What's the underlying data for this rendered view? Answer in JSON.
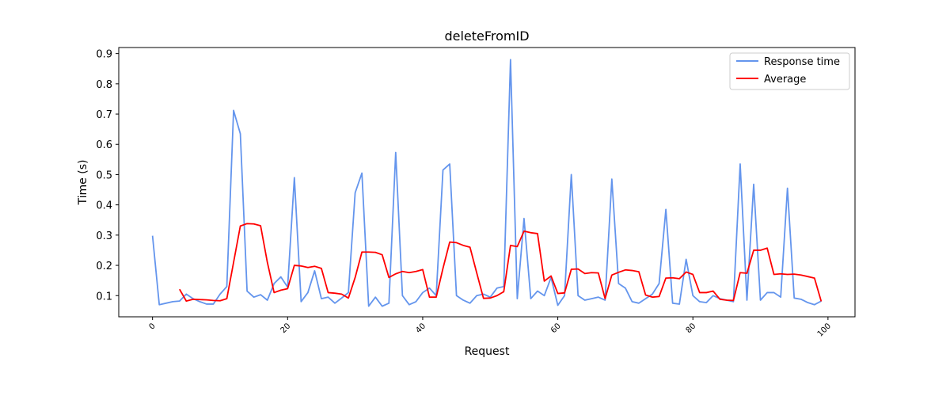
{
  "chart_data": {
    "type": "line",
    "title": "deleteFromID",
    "xlabel": "Request",
    "ylabel": "Time (s)",
    "xlim": [
      -5,
      104
    ],
    "ylim": [
      0.03,
      0.92
    ],
    "xticks": [
      0,
      20,
      40,
      60,
      80,
      100
    ],
    "yticks": [
      0.1,
      0.2,
      0.3,
      0.4,
      0.5,
      0.6,
      0.7,
      0.8,
      0.9
    ],
    "xtick_labels": [
      "0",
      "20",
      "40",
      "60",
      "80",
      "100"
    ],
    "ytick_labels": [
      "0.1",
      "0.2",
      "0.3",
      "0.4",
      "0.5",
      "0.6",
      "0.7",
      "0.8",
      "0.9"
    ],
    "grid": false,
    "legend_position": "top-right",
    "series": [
      {
        "name": "Response time",
        "color": "#6495ED",
        "x": [
          0,
          1,
          2,
          3,
          4,
          5,
          6,
          7,
          8,
          9,
          10,
          11,
          12,
          13,
          14,
          15,
          16,
          17,
          18,
          19,
          20,
          21,
          22,
          23,
          24,
          25,
          26,
          27,
          28,
          29,
          30,
          31,
          32,
          33,
          34,
          35,
          36,
          37,
          38,
          39,
          40,
          41,
          42,
          43,
          44,
          45,
          46,
          47,
          48,
          49,
          50,
          51,
          52,
          53,
          54,
          55,
          56,
          57,
          58,
          59,
          60,
          61,
          62,
          63,
          64,
          65,
          66,
          67,
          68,
          69,
          70,
          71,
          72,
          73,
          74,
          75,
          76,
          77,
          78,
          79,
          80,
          81,
          82,
          83,
          84,
          85,
          86,
          87,
          88,
          89,
          90,
          91,
          92,
          93,
          94,
          95,
          96,
          97,
          98,
          99
        ],
        "values": [
          0.298,
          0.07,
          0.075,
          0.08,
          0.082,
          0.105,
          0.09,
          0.08,
          0.072,
          0.072,
          0.105,
          0.13,
          0.712,
          0.635,
          0.115,
          0.095,
          0.103,
          0.085,
          0.14,
          0.162,
          0.128,
          0.49,
          0.08,
          0.11,
          0.182,
          0.09,
          0.095,
          0.075,
          0.092,
          0.11,
          0.44,
          0.505,
          0.065,
          0.095,
          0.065,
          0.075,
          0.573,
          0.1,
          0.07,
          0.08,
          0.11,
          0.125,
          0.1,
          0.515,
          0.535,
          0.1,
          0.085,
          0.075,
          0.1,
          0.105,
          0.095,
          0.125,
          0.13,
          0.88,
          0.09,
          0.355,
          0.09,
          0.115,
          0.1,
          0.16,
          0.068,
          0.1,
          0.5,
          0.1,
          0.085,
          0.09,
          0.095,
          0.085,
          0.485,
          0.14,
          0.125,
          0.08,
          0.075,
          0.09,
          0.105,
          0.14,
          0.385,
          0.075,
          0.072,
          0.22,
          0.1,
          0.08,
          0.077,
          0.1,
          0.09,
          0.085,
          0.08,
          0.535,
          0.085,
          0.468,
          0.085,
          0.11,
          0.11,
          0.095,
          0.455,
          0.092,
          0.088,
          0.077,
          0.07,
          0.082
        ]
      },
      {
        "name": "Average",
        "color": "#FF0000",
        "x": [
          4,
          5,
          6,
          7,
          8,
          9,
          10,
          11,
          12,
          13,
          14,
          15,
          16,
          17,
          18,
          19,
          20,
          21,
          22,
          23,
          24,
          25,
          26,
          27,
          28,
          29,
          30,
          31,
          32,
          33,
          34,
          35,
          36,
          37,
          38,
          39,
          40,
          41,
          42,
          43,
          44,
          45,
          46,
          47,
          48,
          49,
          50,
          51,
          52,
          53,
          54,
          55,
          56,
          57,
          58,
          59,
          60,
          61,
          62,
          63,
          64,
          65,
          66,
          67,
          68,
          69,
          70,
          71,
          72,
          73,
          74,
          75,
          76,
          77,
          78,
          79,
          80,
          81,
          82,
          83,
          84,
          85,
          86,
          87,
          88,
          89,
          90,
          91,
          92,
          93,
          94,
          95,
          96,
          97,
          98,
          99
        ],
        "values": [
          0.121,
          0.082,
          0.088,
          0.087,
          0.086,
          0.084,
          0.083,
          0.09,
          0.21,
          0.33,
          0.338,
          0.337,
          0.331,
          0.21,
          0.11,
          0.118,
          0.123,
          0.2,
          0.198,
          0.193,
          0.197,
          0.19,
          0.11,
          0.108,
          0.105,
          0.092,
          0.16,
          0.244,
          0.244,
          0.243,
          0.235,
          0.16,
          0.172,
          0.18,
          0.176,
          0.18,
          0.186,
          0.095,
          0.095,
          0.19,
          0.277,
          0.275,
          0.266,
          0.26,
          0.175,
          0.091,
          0.092,
          0.1,
          0.113,
          0.266,
          0.262,
          0.313,
          0.308,
          0.305,
          0.148,
          0.165,
          0.107,
          0.109,
          0.187,
          0.188,
          0.173,
          0.176,
          0.175,
          0.09,
          0.168,
          0.177,
          0.185,
          0.183,
          0.179,
          0.102,
          0.095,
          0.097,
          0.158,
          0.159,
          0.156,
          0.178,
          0.17,
          0.11,
          0.11,
          0.115,
          0.088,
          0.085,
          0.084,
          0.176,
          0.174,
          0.25,
          0.25,
          0.257,
          0.17,
          0.172,
          0.17,
          0.171,
          0.168,
          0.163,
          0.158,
          0.081
        ]
      }
    ]
  }
}
